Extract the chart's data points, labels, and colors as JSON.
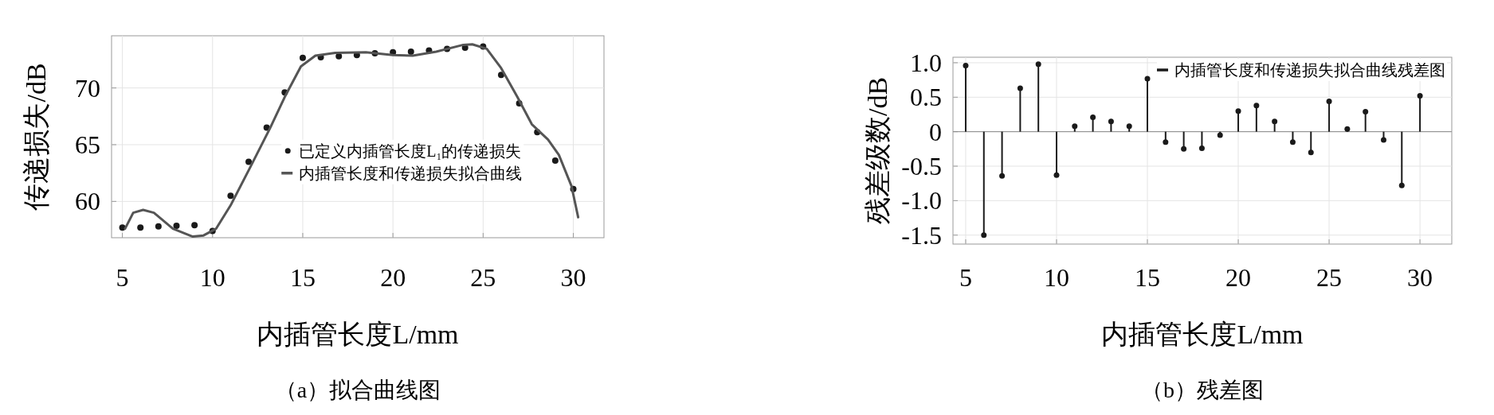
{
  "chart_data": [
    {
      "type": "scatter",
      "title": "（a）拟合曲线图",
      "xlabel": "内插管长度L/mm",
      "ylabel": "传递损失/dB",
      "x": [
        5,
        6,
        7,
        8,
        9,
        10,
        11,
        12,
        13,
        14,
        15,
        16,
        17,
        18,
        19,
        20,
        21,
        22,
        23,
        24,
        25,
        26,
        27,
        28,
        29,
        30
      ],
      "series": [
        {
          "name": "已定义内插管长度L₁的传递损失",
          "type": "scatter",
          "color": "#1a1a1a",
          "values": [
            57.7,
            57.7,
            57.8,
            57.85,
            57.9,
            57.4,
            60.5,
            63.5,
            66.5,
            69.6,
            72.65,
            72.7,
            72.8,
            72.9,
            73.05,
            73.15,
            73.2,
            73.3,
            73.45,
            73.55,
            73.65,
            71.15,
            68.65,
            66.1,
            63.6,
            61.1
          ]
        },
        {
          "name": "内插管长度和传递损失拟合曲线",
          "type": "line",
          "marker": "none",
          "color": "#555555",
          "x": [
            5.15,
            5.6,
            6.15,
            6.75,
            7.8,
            8.9,
            9.5,
            10.2,
            11.0,
            12.1,
            13.2,
            14.0,
            14.9,
            15.7,
            16.8,
            18.5,
            20.0,
            21.1,
            22.4,
            23.9,
            24.4,
            25.2,
            26.0,
            26.9,
            27.7,
            28.6,
            29.2,
            29.9,
            30.27
          ],
          "values": [
            57.6,
            59.0,
            59.25,
            59.0,
            57.6,
            56.9,
            57.0,
            57.6,
            59.65,
            63.05,
            66.5,
            69.2,
            71.9,
            72.85,
            73.1,
            73.15,
            72.9,
            72.85,
            73.2,
            73.8,
            73.85,
            73.45,
            71.75,
            69.2,
            66.8,
            65.45,
            64.1,
            61.35,
            58.6
          ]
        }
      ],
      "xlim": [
        4.4,
        31.7
      ],
      "ylim": [
        56.8,
        74.6
      ],
      "xticks": [
        5,
        10,
        15,
        20,
        25,
        30
      ],
      "yticks": [
        60,
        65,
        70
      ],
      "grid": true,
      "legend": "right",
      "marker": "circle"
    },
    {
      "type": "lollipop",
      "title": "（b）残差图",
      "xlabel": "内插管长度L/mm",
      "ylabel": "残差级数/dB",
      "x": [
        5,
        6,
        7,
        8,
        9,
        10,
        11,
        12,
        13,
        14,
        15,
        16,
        17,
        18,
        19,
        20,
        21,
        22,
        23,
        24,
        25,
        26,
        27,
        28,
        29,
        30
      ],
      "series": [
        {
          "name": "内插管长度和传递损失拟合曲线残差图",
          "color": "#1a1a1a",
          "values": [
            0.96,
            -1.5,
            -0.64,
            0.63,
            0.98,
            -0.63,
            0.08,
            0.21,
            0.15,
            0.08,
            0.77,
            -0.15,
            -0.25,
            -0.24,
            -0.05,
            0.3,
            0.38,
            0.15,
            -0.15,
            -0.3,
            0.44,
            0.04,
            0.29,
            -0.12,
            -0.78,
            0.52
          ]
        }
      ],
      "xlim": [
        4.3,
        31.75
      ],
      "ylim": [
        -1.63,
        1.08
      ],
      "xticks": [
        5,
        10,
        15,
        20,
        25,
        30
      ],
      "yticks": [
        {
          "value": 1,
          "label": "1.0"
        },
        0.5,
        0,
        -0.5,
        {
          "value": -1,
          "label": "-1.0"
        },
        -1.5
      ],
      "grid": true,
      "legend": "top right",
      "marker": "circle"
    }
  ]
}
